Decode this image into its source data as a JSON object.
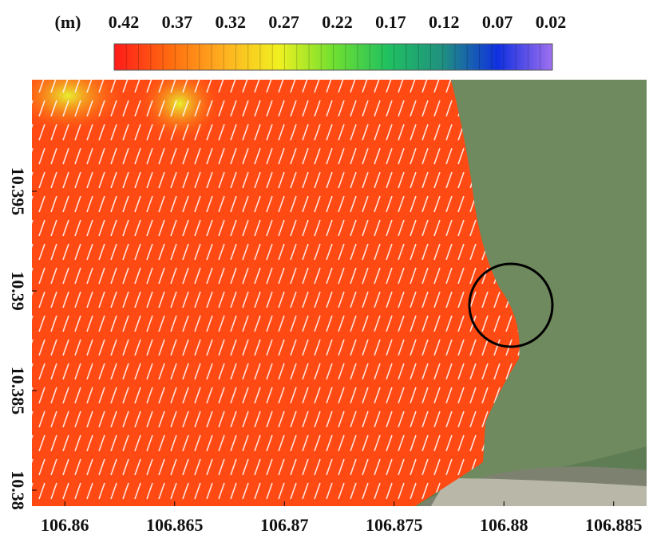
{
  "chart_data": {
    "type": "map",
    "colorbar": {
      "label": "(m)",
      "ticks": [
        0.42,
        0.37,
        0.32,
        0.27,
        0.22,
        0.17,
        0.12,
        0.07,
        0.02
      ],
      "colors": [
        "#ff1a1a",
        "#ff6a10",
        "#ffb020",
        "#f0f020",
        "#70e030",
        "#20c060",
        "#209080",
        "#1030e0",
        "#a070f0"
      ]
    },
    "xlim": [
      106.8585,
      106.8865
    ],
    "xticks": [
      106.86,
      106.865,
      106.87,
      106.875,
      106.88,
      106.885
    ],
    "ylim": [
      10.3792,
      10.4006
    ],
    "yticks": [
      10.38,
      10.385,
      10.39,
      10.395
    ]
  }
}
